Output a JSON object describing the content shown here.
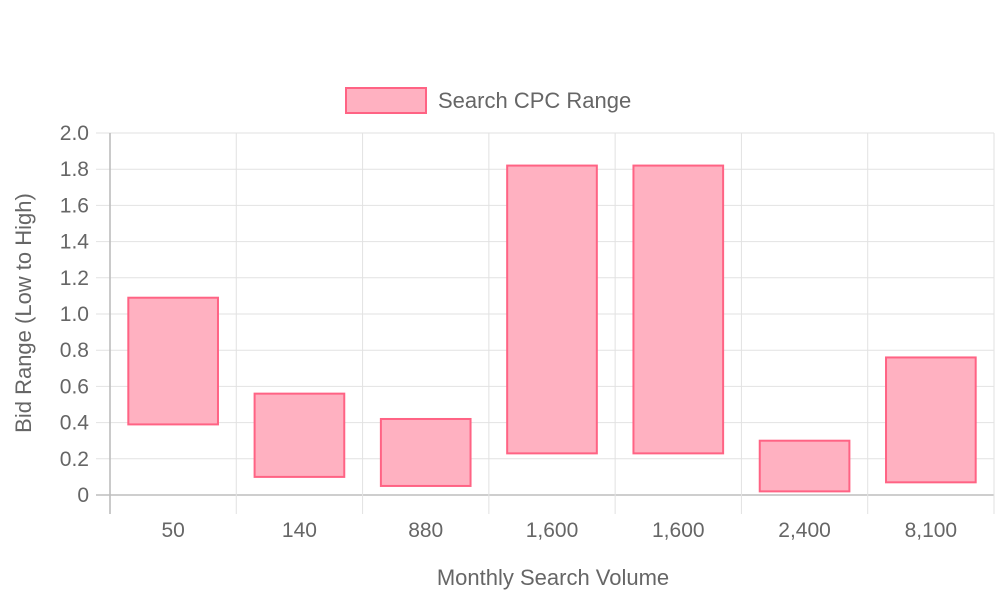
{
  "chart_data": {
    "type": "bar",
    "categories": [
      "50",
      "140",
      "880",
      "1,600",
      "1,600",
      "2,400",
      "8,100"
    ],
    "series": [
      {
        "name": "Search CPC Range",
        "ranges": [
          [
            0.39,
            1.09
          ],
          [
            0.1,
            0.56
          ],
          [
            0.05,
            0.42
          ],
          [
            0.23,
            1.82
          ],
          [
            0.23,
            1.82
          ],
          [
            0.02,
            0.3
          ],
          [
            0.07,
            0.76
          ]
        ],
        "color": "#ffb1c1",
        "border_color": "#ff6384"
      }
    ],
    "xlabel": "Monthly Search Volume",
    "ylabel": "Bid Range (Low to High)",
    "ylim": [
      0,
      2.0
    ],
    "yticks": [
      "0",
      "0.2",
      "0.4",
      "0.6",
      "0.8",
      "1.0",
      "1.2",
      "1.4",
      "1.6",
      "1.8",
      "2.0"
    ],
    "grid": true,
    "legend_position": "top"
  }
}
